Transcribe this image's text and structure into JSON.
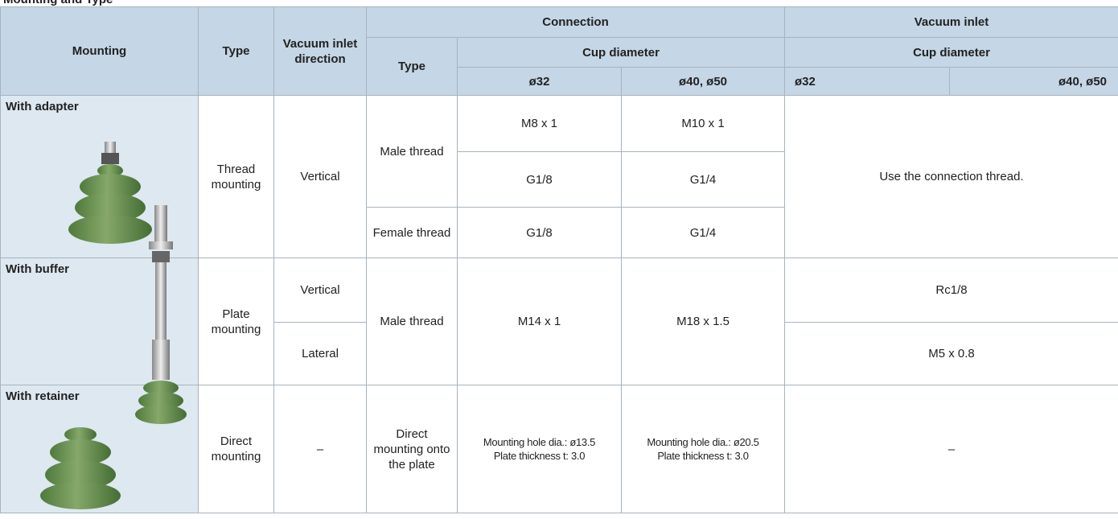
{
  "title": "Mounting and Type",
  "header": {
    "mounting": "Mounting",
    "type": "Type",
    "vacuum_inlet_direction": "Vacuum inlet direction",
    "connection": "Connection",
    "vacuum_inlet": "Vacuum inlet",
    "connection_type": "Type",
    "cup_diameter": [
      "Cup diameter",
      "Cup diameter"
    ],
    "sizes": [
      "ø32",
      "ø40, ø50",
      "ø32",
      "ø40, ø50"
    ]
  },
  "rows": [
    {
      "mounting": "With adapter",
      "type": "Thread mounting",
      "direction": "Vertical",
      "connection_type": "Male thread",
      "cup_32": "M8 x 1",
      "cup_40_50": "M10 x 1",
      "vacuum_inlet": "Use the connection thread."
    },
    {
      "cup_32": "G1/8",
      "cup_40_50": "G1/4"
    },
    {
      "connection_type": "Female thread",
      "cup_32": "G1/8",
      "cup_40_50": "G1/4"
    },
    {
      "mounting": "With buffer",
      "type": "Plate mounting",
      "direction": "Vertical",
      "connection_type": "Male thread",
      "cup_32": "M14 x 1",
      "cup_40_50": "M18 x 1.5",
      "vacuum_inlet": "Rc1/8"
    },
    {
      "direction": "Lateral",
      "vacuum_inlet": "M5 x 0.8"
    },
    {
      "mounting": "With retainer",
      "type": "Direct mounting",
      "direction": "–",
      "connection_type": "Direct mounting onto the plate",
      "cup_32": [
        "Mounting hole dia.: ø13.5",
        "Plate thickness t: 3.0"
      ],
      "cup_40_50": [
        "Mounting hole dia.: ø20.5",
        "Plate thickness t: 3.0"
      ],
      "vacuum_inlet": "–"
    }
  ]
}
